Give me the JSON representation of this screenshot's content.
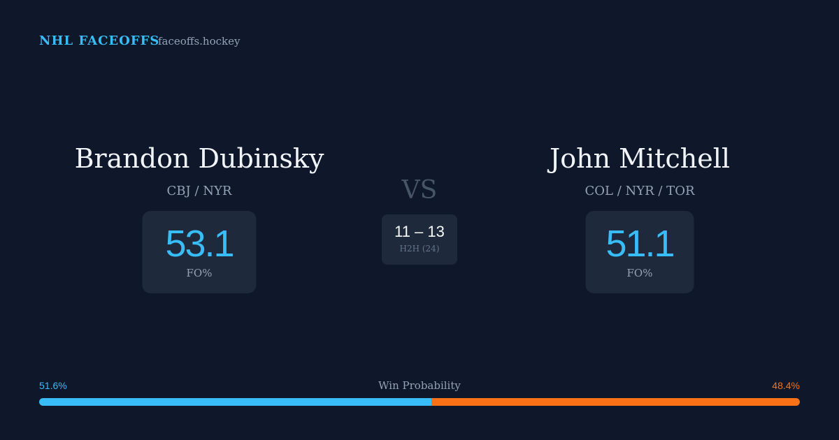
{
  "header": {
    "brand": "NHL FACEOFFS",
    "site": "faceoffs.hockey"
  },
  "players": [
    {
      "name": "Brandon Dubinsky",
      "teams": "CBJ / NYR",
      "fo_pct": 53.1,
      "fo_label": "FO%"
    },
    {
      "name": "John Mitchell",
      "teams": "COL / NYR / TOR",
      "fo_pct": 51.1,
      "fo_label": "FO%"
    }
  ],
  "versus": "VS",
  "h2h": {
    "record": "11 – 13",
    "label": "H2H (24)"
  },
  "win_probability": {
    "title": "Win Probability",
    "values": [
      51.6,
      48.4
    ],
    "value_labels": [
      "51.6%",
      "48.4%"
    ],
    "colors": [
      "#38bdf8",
      "#f97316"
    ]
  }
}
